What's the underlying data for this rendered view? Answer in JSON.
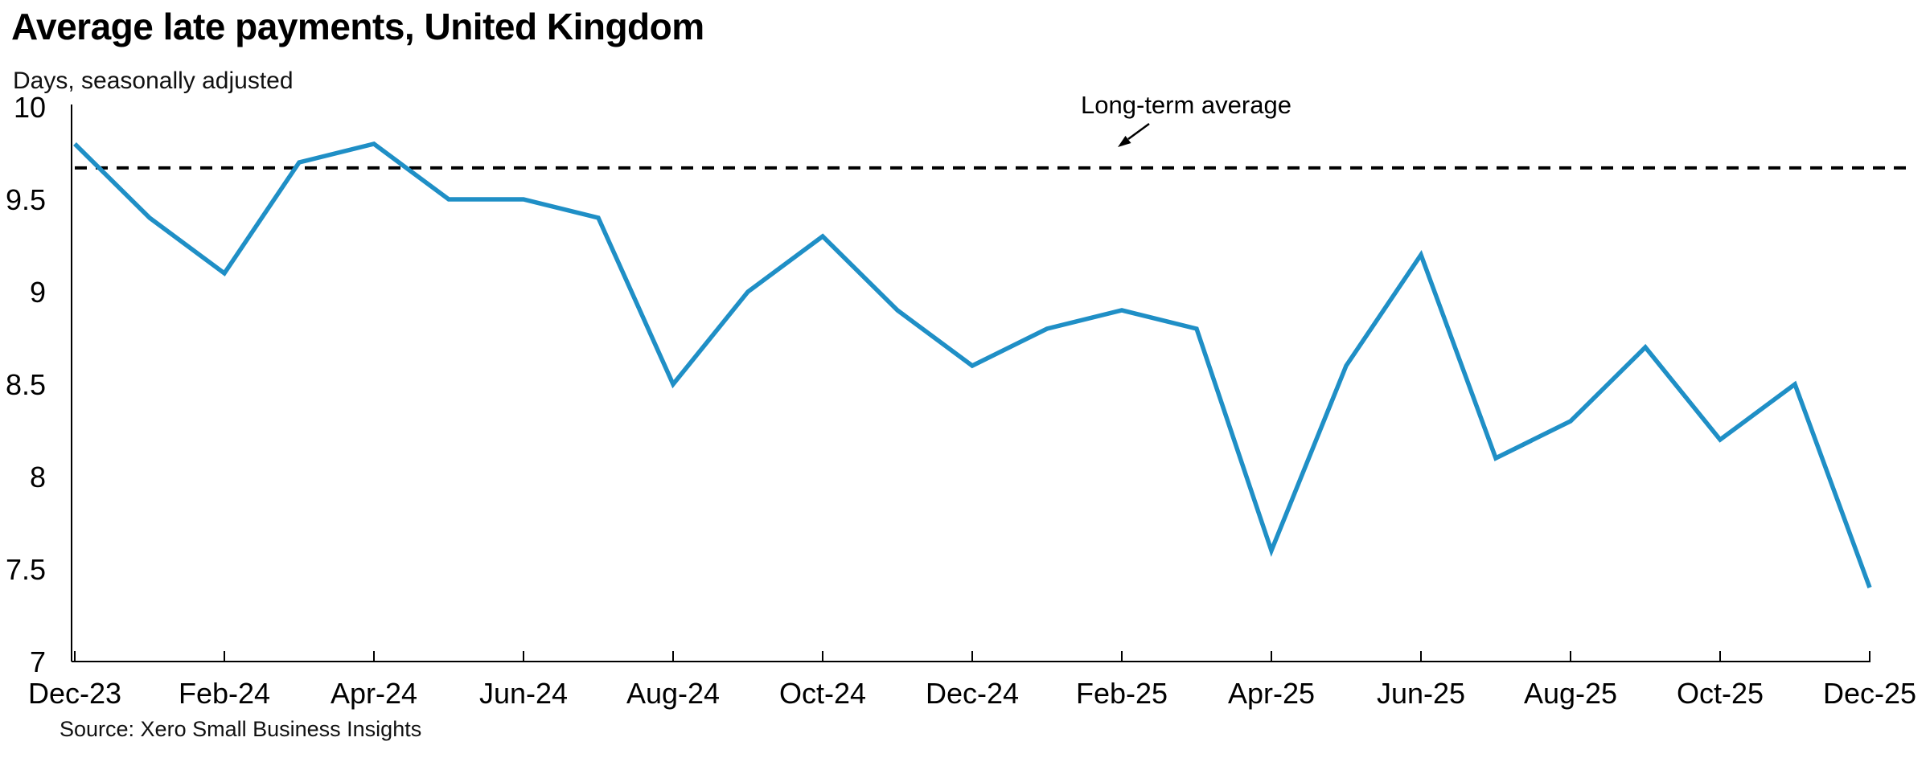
{
  "title": "Average late payments, United Kingdom",
  "subtitle": "Days, seasonally adjusted",
  "source": "Source: Xero Small Business Insights",
  "annotation": {
    "label": "Long-term average"
  },
  "colors": {
    "line": "#1F8FC6",
    "average_line": "#000000",
    "axis": "#000000",
    "text": "#000000",
    "background": "#FFFFFF"
  },
  "chart_data": {
    "type": "line",
    "title": "Average late payments, United Kingdom",
    "subtitle": "Days, seasonally adjusted",
    "ylabel": "Days, seasonally adjusted",
    "xlabel": "",
    "unit": "days",
    "grid": false,
    "legend_position": "none",
    "x": [
      "Dec-23",
      "Jan-24",
      "Feb-24",
      "Mar-24",
      "Apr-24",
      "May-24",
      "Jun-24",
      "Jul-24",
      "Aug-24",
      "Sep-24",
      "Oct-24",
      "Nov-24",
      "Dec-24",
      "Jan-25",
      "Feb-25",
      "Mar-25",
      "Apr-25",
      "May-25",
      "Jun-25",
      "Jul-25",
      "Aug-25",
      "Sep-25",
      "Oct-25",
      "Nov-25",
      "Dec-25"
    ],
    "series": [
      {
        "name": "Average late payments (days)",
        "values": [
          9.8,
          9.4,
          9.1,
          9.7,
          9.8,
          9.5,
          9.5,
          9.4,
          8.5,
          9.0,
          9.3,
          8.9,
          8.6,
          8.8,
          8.9,
          8.8,
          7.6,
          8.6,
          9.2,
          8.1,
          8.3,
          8.7,
          8.2,
          8.5,
          7.4
        ]
      }
    ],
    "long_term_average": 9.67,
    "ylim": [
      7,
      10
    ],
    "yticks": [
      10,
      9.5,
      9,
      8.5,
      8,
      7.5,
      7
    ],
    "xtick_labels": [
      "Dec-23",
      "Feb-24",
      "Apr-24",
      "Jun-24",
      "Aug-24",
      "Oct-24",
      "Dec-24",
      "Feb-25",
      "Apr-25",
      "Jun-25",
      "Aug-25",
      "Oct-25",
      "Dec-25"
    ]
  }
}
